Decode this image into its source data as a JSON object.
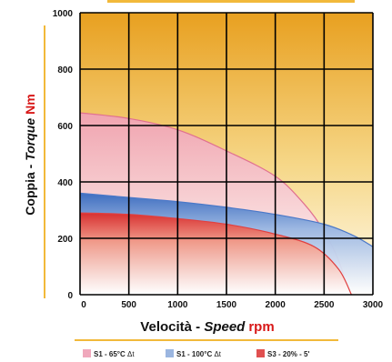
{
  "chart_data": {
    "type": "area",
    "ylabel": {
      "main": "Coppia - ",
      "italic": "Torque",
      "unit": "Nm"
    },
    "xlabel": {
      "main": "Velocità - ",
      "italic": "Speed",
      "unit": "rpm"
    },
    "xlim": [
      0,
      3000
    ],
    "ylim": [
      0,
      1000
    ],
    "x_ticks": [
      "0",
      "500",
      "1000",
      "1500",
      "2000",
      "2500",
      "3000"
    ],
    "y_ticks": [
      "0",
      "200",
      "400",
      "600",
      "800",
      "1000"
    ],
    "grid": true,
    "legend_position": "bottom",
    "series": [
      {
        "name": "S1 - 65°C Δt",
        "color": "#e07090",
        "points": [
          [
            0,
            645
          ],
          [
            500,
            625
          ],
          [
            1000,
            585
          ],
          [
            1500,
            510
          ],
          [
            2000,
            420
          ],
          [
            2300,
            320
          ],
          [
            2500,
            225
          ],
          [
            2650,
            120
          ],
          [
            2760,
            0
          ]
        ]
      },
      {
        "name": "S1 - 100°C Δt",
        "color": "#4a78c8",
        "points": [
          [
            0,
            360
          ],
          [
            500,
            345
          ],
          [
            1000,
            330
          ],
          [
            1500,
            310
          ],
          [
            2000,
            285
          ],
          [
            2500,
            250
          ],
          [
            2800,
            210
          ],
          [
            3000,
            170
          ]
        ]
      },
      {
        "name": "S3 - 20% - 5'",
        "color": "#e04040",
        "points": [
          [
            0,
            290
          ],
          [
            500,
            285
          ],
          [
            1000,
            270
          ],
          [
            1500,
            250
          ],
          [
            2000,
            215
          ],
          [
            2400,
            170
          ],
          [
            2650,
            90
          ],
          [
            2780,
            0
          ]
        ]
      }
    ],
    "legend": [
      {
        "label": "S1 - 65°C ",
        "symbol": "Δt",
        "color": "#f0a8bc"
      },
      {
        "label": "S1 - 100°C ",
        "symbol": "Δt",
        "color": "#9bb6e0"
      },
      {
        "label": "S3 - 20% - 5'",
        "symbol": "",
        "color": "#e05050"
      }
    ]
  }
}
